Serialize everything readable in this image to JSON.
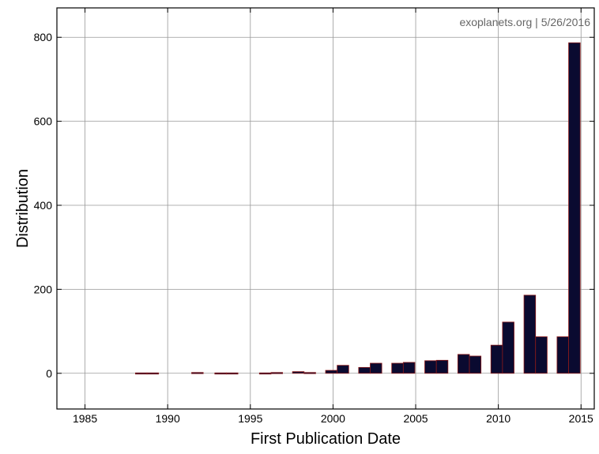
{
  "chart_data": {
    "type": "bar",
    "watermark": "exoplanets.org | 5/26/2016",
    "xlabel": "First Publication Date",
    "ylabel": "Distribution",
    "xlim": [
      1983.3,
      2015.8
    ],
    "ylim": [
      -85,
      870
    ],
    "x_ticks": [
      1985,
      1990,
      1995,
      2000,
      2005,
      2010,
      2015
    ],
    "y_ticks": [
      0,
      200,
      400,
      600,
      800
    ],
    "bar_width": 0.7,
    "grid": true,
    "colors": {
      "bar_fill": "#0a0a30",
      "bar_stroke": "#8b1a1a",
      "grid": "#999999"
    },
    "bars": [
      {
        "x": 1988.4,
        "value": 1
      },
      {
        "x": 1989.1,
        "value": 1
      },
      {
        "x": 1991.8,
        "value": 2
      },
      {
        "x": 1993.2,
        "value": 1
      },
      {
        "x": 1993.9,
        "value": 1
      },
      {
        "x": 1995.9,
        "value": 1
      },
      {
        "x": 1996.6,
        "value": 2
      },
      {
        "x": 1997.9,
        "value": 4
      },
      {
        "x": 1998.6,
        "value": 2
      },
      {
        "x": 1999.9,
        "value": 7
      },
      {
        "x": 2000.6,
        "value": 19
      },
      {
        "x": 2001.9,
        "value": 14
      },
      {
        "x": 2002.6,
        "value": 24
      },
      {
        "x": 2003.9,
        "value": 24
      },
      {
        "x": 2004.6,
        "value": 26
      },
      {
        "x": 2005.9,
        "value": 30
      },
      {
        "x": 2006.6,
        "value": 31
      },
      {
        "x": 2007.9,
        "value": 45
      },
      {
        "x": 2008.6,
        "value": 41
      },
      {
        "x": 2009.9,
        "value": 67
      },
      {
        "x": 2010.6,
        "value": 122
      },
      {
        "x": 2011.9,
        "value": 186
      },
      {
        "x": 2012.6,
        "value": 87
      },
      {
        "x": 2013.9,
        "value": 87
      },
      {
        "x": 2014.6,
        "value": 787
      }
    ]
  }
}
